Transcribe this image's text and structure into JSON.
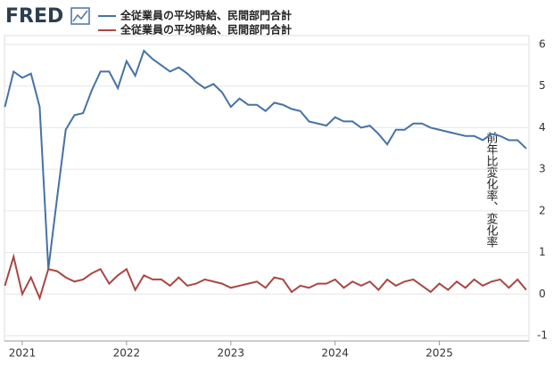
{
  "logo": "FRED",
  "chart_data": {
    "type": "line",
    "y_label": "前年比変化率、変化率",
    "categories": [
      null,
      null,
      "2021",
      null,
      null,
      null,
      null,
      null,
      null,
      null,
      null,
      null,
      null,
      null,
      "2022",
      null,
      null,
      null,
      null,
      null,
      null,
      null,
      null,
      null,
      null,
      null,
      "2023",
      null,
      null,
      null,
      null,
      null,
      null,
      null,
      null,
      null,
      null,
      null,
      "2024",
      null,
      null,
      null,
      null,
      null,
      null,
      null,
      null,
      null,
      null,
      null,
      "2025",
      null,
      null,
      null,
      null,
      null,
      null,
      null,
      null,
      null,
      null
    ],
    "series": [
      {
        "name": "全従業員の平均時給、民間部門合計",
        "color": "#4572a7",
        "values": [
          4.5,
          5.35,
          5.2,
          5.3,
          4.5,
          0.6,
          2.3,
          3.95,
          4.3,
          4.35,
          4.9,
          5.35,
          5.35,
          4.95,
          5.6,
          5.25,
          5.85,
          5.65,
          5.5,
          5.35,
          5.45,
          5.3,
          5.1,
          4.95,
          5.05,
          4.85,
          4.5,
          4.7,
          4.55,
          4.55,
          4.4,
          4.6,
          4.55,
          4.45,
          4.4,
          4.15,
          4.1,
          4.05,
          4.25,
          4.15,
          4.15,
          4.0,
          4.05,
          3.85,
          3.6,
          3.95,
          3.95,
          4.1,
          4.1,
          4.0,
          3.95,
          3.9,
          3.85,
          3.8,
          3.8,
          3.7,
          3.85,
          3.8,
          3.7,
          3.7,
          3.5
        ]
      },
      {
        "name": "全従業員の平均時給、民間部門合計",
        "color": "#aa4643",
        "values": [
          0.2,
          0.9,
          0.0,
          0.4,
          -0.1,
          0.6,
          0.55,
          0.4,
          0.3,
          0.35,
          0.5,
          0.6,
          0.25,
          0.45,
          0.6,
          0.1,
          0.45,
          0.35,
          0.35,
          0.2,
          0.4,
          0.2,
          0.25,
          0.35,
          0.3,
          0.25,
          0.15,
          0.2,
          0.25,
          0.3,
          0.15,
          0.4,
          0.35,
          0.05,
          0.2,
          0.15,
          0.25,
          0.25,
          0.35,
          0.15,
          0.3,
          0.2,
          0.3,
          0.1,
          0.35,
          0.2,
          0.3,
          0.35,
          0.2,
          0.05,
          0.25,
          0.1,
          0.3,
          0.15,
          0.35,
          0.2,
          0.3,
          0.35,
          0.15,
          0.35,
          0.1
        ]
      }
    ],
    "ylim": [
      -1,
      6
    ],
    "yticks": [
      -1,
      0,
      1,
      2,
      3,
      4,
      5,
      6
    ],
    "grid": true
  }
}
